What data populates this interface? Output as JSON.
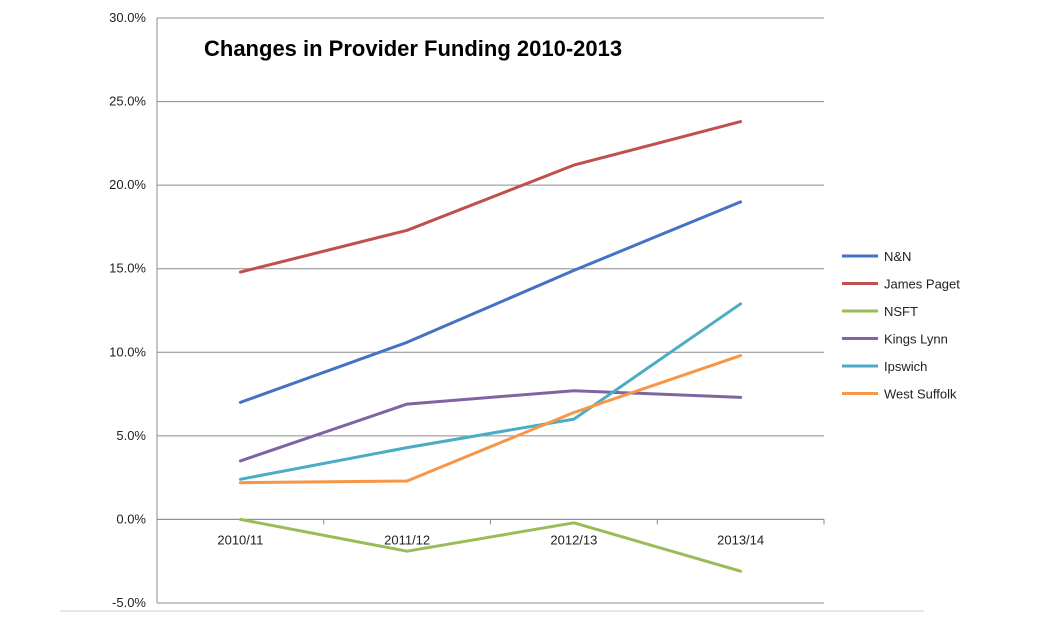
{
  "chart_data": {
    "type": "line",
    "title": "Changes in Provider Funding 2010-2013",
    "xlabel": "",
    "ylabel": "",
    "categories": [
      "2010/11",
      "2011/12",
      "2012/13",
      "2013/14"
    ],
    "y_ticks": [
      "-5.0%",
      "0.0%",
      "5.0%",
      "10.0%",
      "15.0%",
      "20.0%",
      "25.0%",
      "30.0%"
    ],
    "ylim": [
      -5,
      30
    ],
    "grid": true,
    "legend_position": "right",
    "series": [
      {
        "name": "N&N",
        "color": "#4472C4",
        "values": [
          7.0,
          10.6,
          14.9,
          19.0
        ]
      },
      {
        "name": "James Paget",
        "color": "#C0504D",
        "values": [
          14.8,
          17.3,
          21.2,
          23.8
        ]
      },
      {
        "name": "NSFT",
        "color": "#9BBB59",
        "values": [
          0.0,
          -1.9,
          -0.2,
          -3.1
        ]
      },
      {
        "name": "Kings Lynn",
        "color": "#8064A2",
        "values": [
          3.5,
          6.9,
          7.7,
          7.3
        ]
      },
      {
        "name": "Ipswich",
        "color": "#4BACC6",
        "values": [
          2.4,
          4.3,
          6.0,
          12.9
        ]
      },
      {
        "name": "West Suffolk",
        "color": "#F79646",
        "values": [
          2.2,
          2.3,
          6.4,
          9.8
        ]
      }
    ]
  }
}
